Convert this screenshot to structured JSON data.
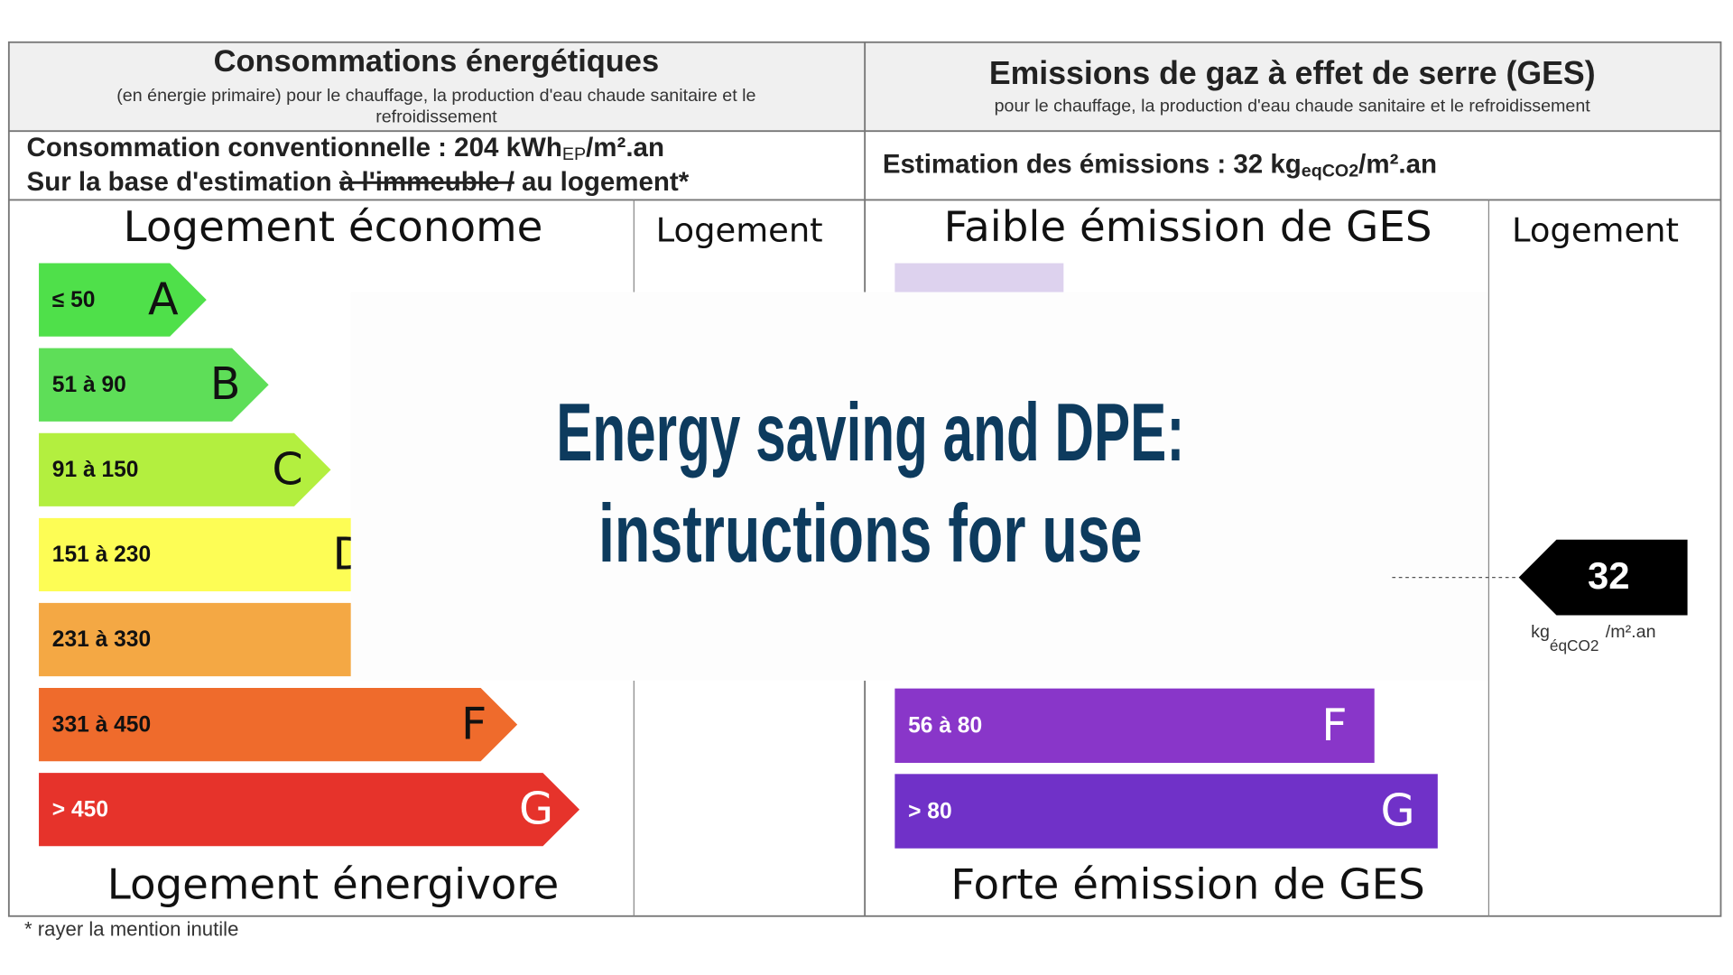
{
  "left": {
    "header": {
      "title": "Consommations énergétiques",
      "subtitle_lines": [
        "(en énergie primaire) pour le chauffage, la production d'eau chaude sanitaire et le",
        "refroidissement"
      ]
    },
    "consumption": {
      "text": "Consommation conventionnelle : 204 kWh",
      "sub": "EP",
      "unit": "/m².an"
    },
    "basis": {
      "text": "Sur la base d'estimation ",
      "struck": "à l'immeuble /",
      "rest": " au logement*"
    },
    "top_label": "Logement économe",
    "column_label": "Logement",
    "bottom_label": "Logement énergivore",
    "classes": [
      {
        "range": "≤ 50",
        "letter": "A",
        "color": "#4fe04a"
      },
      {
        "range": "51 à 90",
        "letter": "B",
        "color": "#5ede58"
      },
      {
        "range": "91 à 150",
        "letter": "C",
        "color": "#b3ef3f"
      },
      {
        "range": "151 à 230",
        "letter": "D",
        "color": "#fdfd55"
      },
      {
        "range": "231 à 330",
        "color": "#f4a844"
      },
      {
        "range": "331 à 450",
        "letter": "F",
        "color": "#ef6b2c"
      },
      {
        "range": "> 450",
        "letter": "G",
        "color": "#e6332b"
      }
    ]
  },
  "right": {
    "header": {
      "title": "Emissions de gaz à effet de serre (GES)",
      "subtitle": "pour le chauffage, la production d'eau chaude sanitaire et le refroidissement"
    },
    "estimation": {
      "text": "Estimation des émissions : 32 kg",
      "sub": "eqCO2",
      "unit": "/m².an"
    },
    "top_label": "Faible émission de GES",
    "column_label": "Logement",
    "bottom_label": "Forte émission de GES",
    "classes": [
      {
        "color": "#ddd2ee"
      },
      {
        "range": "56 à 80",
        "letter": "F",
        "color": "#8936c9"
      },
      {
        "range": "> 80",
        "letter": "G",
        "color": "#7031c8"
      }
    ],
    "marker": {
      "value": "32",
      "unit": "kg",
      "sub": "éqCO2",
      "unit_tail": "/m².an"
    }
  },
  "footnote": "* rayer la mention inutile",
  "overlay": {
    "line1": "Energy saving and DPE:",
    "line2": "instructions for use"
  }
}
